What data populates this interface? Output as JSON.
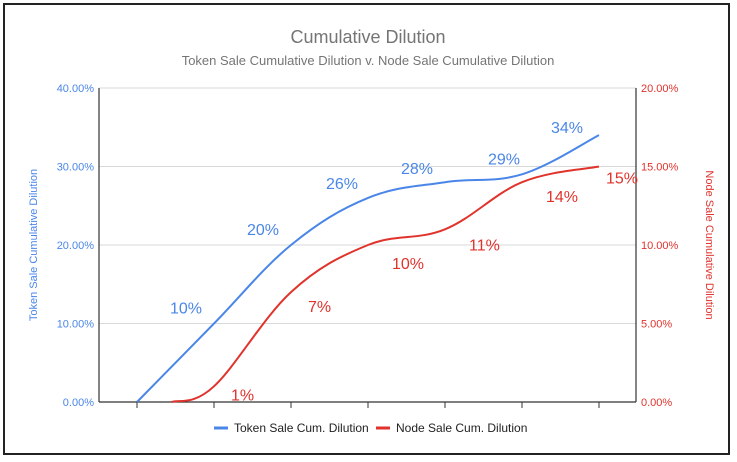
{
  "colors": {
    "token": "#4a86e8",
    "node": "#e0332c"
  },
  "chart_data": {
    "type": "line",
    "title": "Cumulative Dilution",
    "subtitle": "Token Sale Cumulative Dilution v. Node Sale Cumulative Dilution",
    "ylabel_left": "Token Sale Cumulative Dilution",
    "ylabel_right": "Node Sale Cumulative Dilution",
    "yticks_left": [
      "0.00%",
      "10.00%",
      "20.00%",
      "30.00%",
      "40.00%"
    ],
    "yticks_right": [
      "0.00%",
      "5.00%",
      "10.00%",
      "15.00%",
      "20.00%"
    ],
    "ylim_left": [
      0,
      40
    ],
    "ylim_right": [
      0,
      20
    ],
    "grid": "horizontal",
    "legend_position": "bottom",
    "x_tick_count": 7,
    "series": [
      {
        "name": "Token Sale Cum. Dilution",
        "axis": "left",
        "points": [
          [
            0,
            0
          ],
          [
            1,
            10
          ],
          [
            2,
            20
          ],
          [
            3,
            26
          ],
          [
            4,
            28
          ],
          [
            5,
            29
          ],
          [
            6,
            34
          ]
        ],
        "labels": [
          {
            "at": 1,
            "text": "10%"
          },
          {
            "at": 2,
            "text": "20%"
          },
          {
            "at": 3,
            "text": "26%"
          },
          {
            "at": 4,
            "text": "28%"
          },
          {
            "at": 5,
            "text": "29%"
          },
          {
            "at": 6,
            "text": "34%"
          }
        ]
      },
      {
        "name": "Node Sale Cum. Dilution",
        "axis": "right",
        "points": [
          [
            0.45,
            0
          ],
          [
            1,
            1
          ],
          [
            2,
            7
          ],
          [
            3,
            10
          ],
          [
            4,
            11
          ],
          [
            5,
            14
          ],
          [
            6,
            15
          ]
        ],
        "labels": [
          {
            "at": 1,
            "text": "1%"
          },
          {
            "at": 2,
            "text": "7%"
          },
          {
            "at": 3,
            "text": "10%"
          },
          {
            "at": 4,
            "text": "11%"
          },
          {
            "at": 5,
            "text": "14%"
          },
          {
            "at": 6,
            "text": "15%"
          }
        ]
      }
    ]
  }
}
